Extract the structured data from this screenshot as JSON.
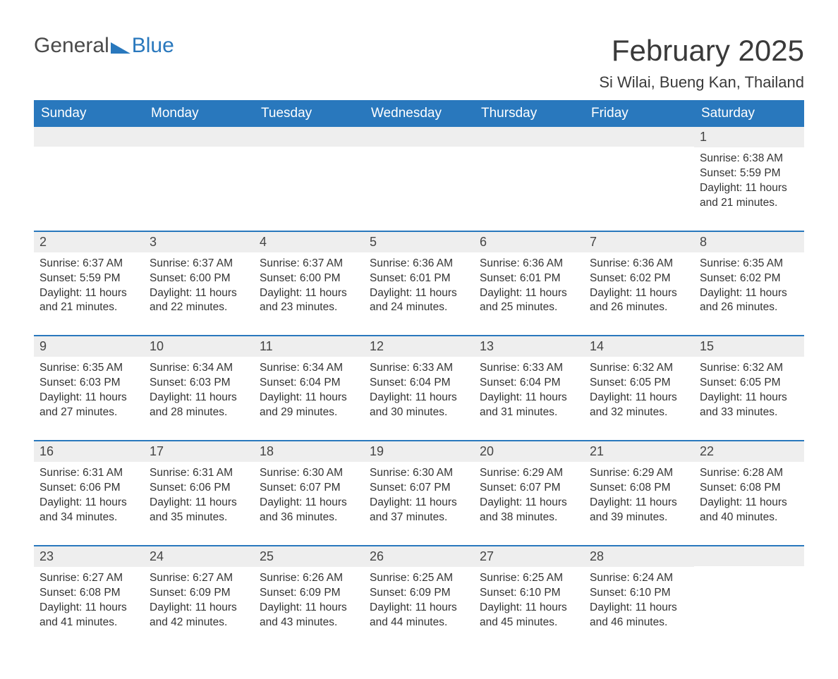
{
  "logo": {
    "part1": "General",
    "part2": "Blue"
  },
  "title": "February 2025",
  "location": "Si Wilai, Bueng Kan, Thailand",
  "colors": {
    "header_bg": "#2978bd",
    "header_text": "#ffffff",
    "daynum_bg": "#eeeeee",
    "week_border": "#2978bd",
    "body_text": "#333333",
    "logo_gray": "#4a4a4a",
    "logo_blue": "#2978bd"
  },
  "daynames": [
    "Sunday",
    "Monday",
    "Tuesday",
    "Wednesday",
    "Thursday",
    "Friday",
    "Saturday"
  ],
  "weeks": [
    [
      {
        "day": null
      },
      {
        "day": null
      },
      {
        "day": null
      },
      {
        "day": null
      },
      {
        "day": null
      },
      {
        "day": null
      },
      {
        "day": 1,
        "sunrise": "6:38 AM",
        "sunset": "5:59 PM",
        "daylight": "11 hours and 21 minutes."
      }
    ],
    [
      {
        "day": 2,
        "sunrise": "6:37 AM",
        "sunset": "5:59 PM",
        "daylight": "11 hours and 21 minutes."
      },
      {
        "day": 3,
        "sunrise": "6:37 AM",
        "sunset": "6:00 PM",
        "daylight": "11 hours and 22 minutes."
      },
      {
        "day": 4,
        "sunrise": "6:37 AM",
        "sunset": "6:00 PM",
        "daylight": "11 hours and 23 minutes."
      },
      {
        "day": 5,
        "sunrise": "6:36 AM",
        "sunset": "6:01 PM",
        "daylight": "11 hours and 24 minutes."
      },
      {
        "day": 6,
        "sunrise": "6:36 AM",
        "sunset": "6:01 PM",
        "daylight": "11 hours and 25 minutes."
      },
      {
        "day": 7,
        "sunrise": "6:36 AM",
        "sunset": "6:02 PM",
        "daylight": "11 hours and 26 minutes."
      },
      {
        "day": 8,
        "sunrise": "6:35 AM",
        "sunset": "6:02 PM",
        "daylight": "11 hours and 26 minutes."
      }
    ],
    [
      {
        "day": 9,
        "sunrise": "6:35 AM",
        "sunset": "6:03 PM",
        "daylight": "11 hours and 27 minutes."
      },
      {
        "day": 10,
        "sunrise": "6:34 AM",
        "sunset": "6:03 PM",
        "daylight": "11 hours and 28 minutes."
      },
      {
        "day": 11,
        "sunrise": "6:34 AM",
        "sunset": "6:04 PM",
        "daylight": "11 hours and 29 minutes."
      },
      {
        "day": 12,
        "sunrise": "6:33 AM",
        "sunset": "6:04 PM",
        "daylight": "11 hours and 30 minutes."
      },
      {
        "day": 13,
        "sunrise": "6:33 AM",
        "sunset": "6:04 PM",
        "daylight": "11 hours and 31 minutes."
      },
      {
        "day": 14,
        "sunrise": "6:32 AM",
        "sunset": "6:05 PM",
        "daylight": "11 hours and 32 minutes."
      },
      {
        "day": 15,
        "sunrise": "6:32 AM",
        "sunset": "6:05 PM",
        "daylight": "11 hours and 33 minutes."
      }
    ],
    [
      {
        "day": 16,
        "sunrise": "6:31 AM",
        "sunset": "6:06 PM",
        "daylight": "11 hours and 34 minutes."
      },
      {
        "day": 17,
        "sunrise": "6:31 AM",
        "sunset": "6:06 PM",
        "daylight": "11 hours and 35 minutes."
      },
      {
        "day": 18,
        "sunrise": "6:30 AM",
        "sunset": "6:07 PM",
        "daylight": "11 hours and 36 minutes."
      },
      {
        "day": 19,
        "sunrise": "6:30 AM",
        "sunset": "6:07 PM",
        "daylight": "11 hours and 37 minutes."
      },
      {
        "day": 20,
        "sunrise": "6:29 AM",
        "sunset": "6:07 PM",
        "daylight": "11 hours and 38 minutes."
      },
      {
        "day": 21,
        "sunrise": "6:29 AM",
        "sunset": "6:08 PM",
        "daylight": "11 hours and 39 minutes."
      },
      {
        "day": 22,
        "sunrise": "6:28 AM",
        "sunset": "6:08 PM",
        "daylight": "11 hours and 40 minutes."
      }
    ],
    [
      {
        "day": 23,
        "sunrise": "6:27 AM",
        "sunset": "6:08 PM",
        "daylight": "11 hours and 41 minutes."
      },
      {
        "day": 24,
        "sunrise": "6:27 AM",
        "sunset": "6:09 PM",
        "daylight": "11 hours and 42 minutes."
      },
      {
        "day": 25,
        "sunrise": "6:26 AM",
        "sunset": "6:09 PM",
        "daylight": "11 hours and 43 minutes."
      },
      {
        "day": 26,
        "sunrise": "6:25 AM",
        "sunset": "6:09 PM",
        "daylight": "11 hours and 44 minutes."
      },
      {
        "day": 27,
        "sunrise": "6:25 AM",
        "sunset": "6:10 PM",
        "daylight": "11 hours and 45 minutes."
      },
      {
        "day": 28,
        "sunrise": "6:24 AM",
        "sunset": "6:10 PM",
        "daylight": "11 hours and 46 minutes."
      },
      {
        "day": null
      }
    ]
  ],
  "labels": {
    "sunrise": "Sunrise: ",
    "sunset": "Sunset: ",
    "daylight": "Daylight: "
  }
}
